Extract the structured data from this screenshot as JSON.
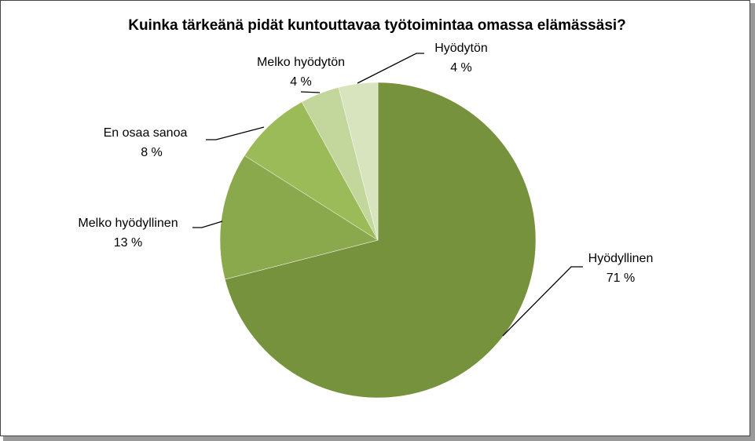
{
  "chart_data": {
    "type": "pie",
    "title": "Kuinka tärkeänä pidät kuntouttavaa työtoimintaa omassa elämässäsi?",
    "categories": [
      "Hyödyllinen",
      "Melko hyödyllinen",
      "En osaa sanoa",
      "Melko hyödytön",
      "Hyödytön"
    ],
    "values": [
      71,
      13,
      8,
      4,
      4
    ],
    "value_labels": [
      "71 %",
      "13 %",
      "8 %",
      "4 %",
      "4 %"
    ],
    "colors": [
      "#77923c",
      "#8aa84c",
      "#9bbb59",
      "#c3d69b",
      "#d7e4bd"
    ]
  }
}
